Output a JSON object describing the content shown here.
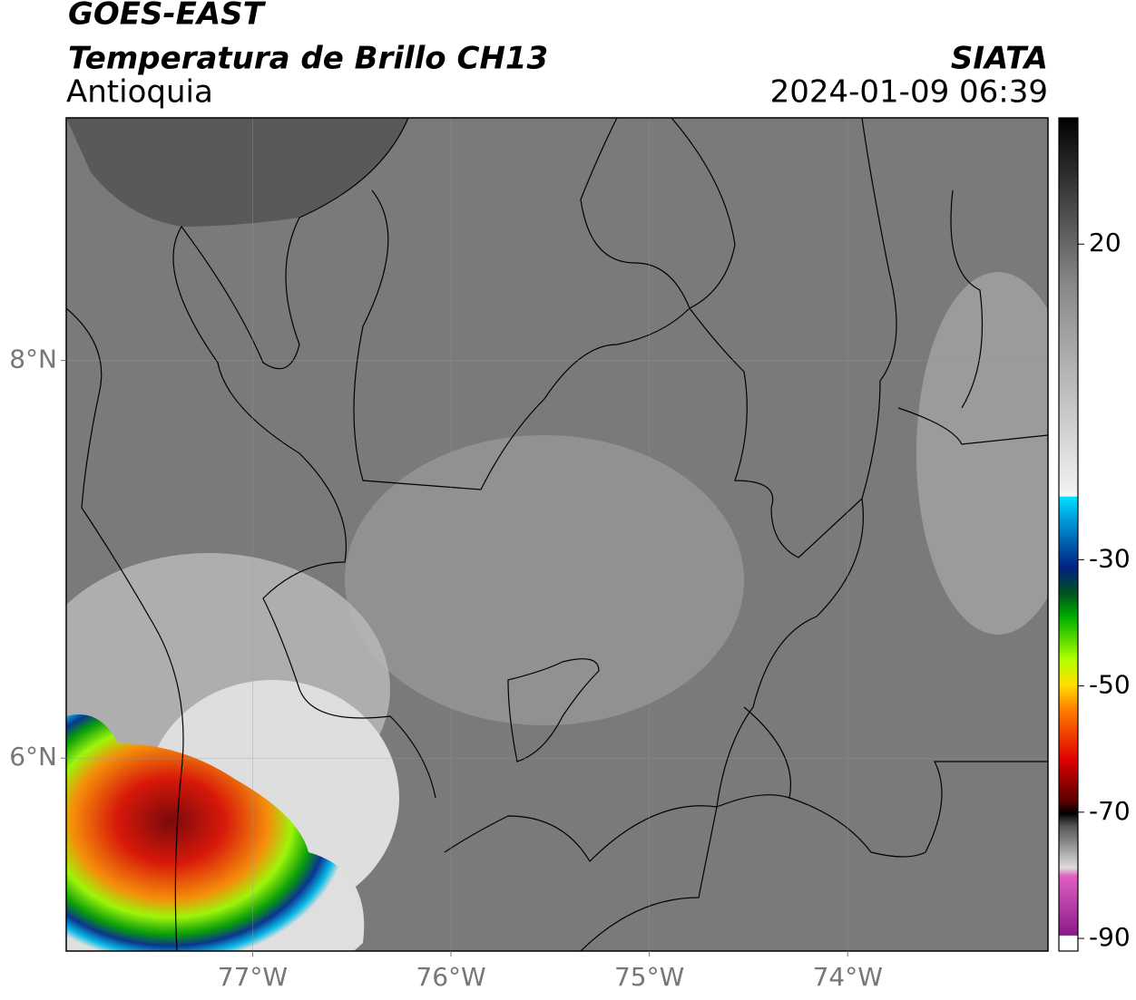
{
  "header": {
    "title": "GOES-EAST",
    "subtitle": "Temperatura de Brillo CH13",
    "region": "Antioquia",
    "source": "SIATA",
    "datetime": "2024-01-09 06:39"
  },
  "map": {
    "lonlim": [
      -77.94,
      -72.99
    ],
    "latlim": [
      5.03,
      9.22
    ],
    "lonticks": [
      {
        "value": -77,
        "label": "77°W"
      },
      {
        "value": -76,
        "label": "76°W"
      },
      {
        "value": -75,
        "label": "75°W"
      },
      {
        "value": -74,
        "label": "74°W"
      }
    ],
    "latticks": [
      {
        "value": 8,
        "label": "8°N"
      },
      {
        "value": 6,
        "label": "6°N"
      }
    ],
    "grid": true
  },
  "colorbar": {
    "lim": [
      -92,
      40
    ],
    "ticks": [
      20,
      -30,
      -50,
      -70,
      -90
    ]
  }
}
